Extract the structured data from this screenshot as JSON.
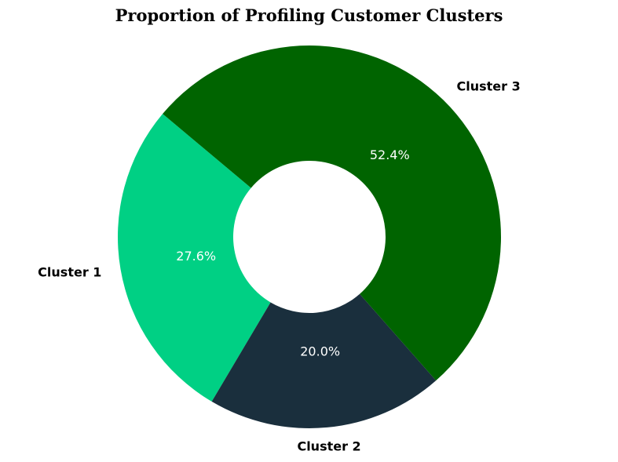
{
  "chart_data": {
    "type": "pie",
    "variant": "donut",
    "title": "Proportion of Profiling Customer Clusters",
    "categories": [
      "Cluster 1",
      "Cluster 2",
      "Cluster 3"
    ],
    "values": [
      27.6,
      20.0,
      52.4
    ],
    "percent_labels": [
      "27.6%",
      "20.0%",
      "52.4%"
    ],
    "colors": [
      "#00d084",
      "#1a2f3d",
      "#006400"
    ],
    "start_angle_deg": 140,
    "direction": "counterclockwise",
    "legend": "none"
  }
}
